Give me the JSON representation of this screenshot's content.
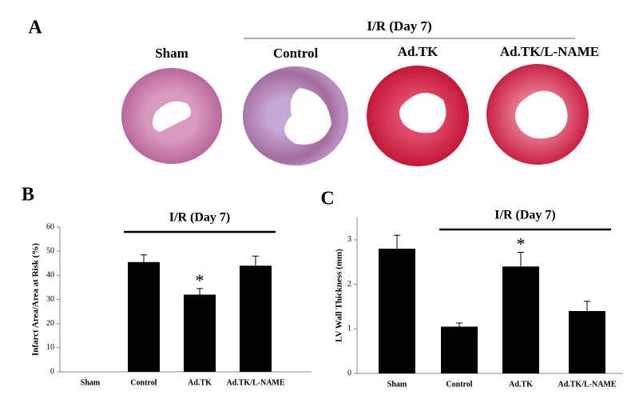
{
  "panel_a": {
    "panel_label": "A",
    "group_label": "I/R (Day 7)",
    "labels": [
      "Sham",
      "Control",
      "Ad.TK",
      "Ad.TK/L-NAME"
    ]
  },
  "chart_data": [
    {
      "type": "bar",
      "panel_label": "B",
      "group_label": "I/R (Day 7)",
      "ylabel": "Infarct Area/Area at Risk (%)",
      "categories": [
        "Sham",
        "Control",
        "Ad.TK",
        "Ad.TK/L-NAME"
      ],
      "values": [
        0,
        45.5,
        32,
        44
      ],
      "errors": [
        null,
        3,
        2.5,
        4
      ],
      "color": "#000000",
      "ylim": [
        0,
        60
      ],
      "yticks": [
        0,
        10,
        20,
        30,
        40,
        50,
        60
      ],
      "annotations": [
        {
          "text": "*",
          "category": "Ad.TK"
        }
      ]
    },
    {
      "type": "bar",
      "panel_label": "C",
      "group_label": "I/R (Day 7)",
      "ylabel": "LV Wall Thickness (mm)",
      "categories": [
        "Sham",
        "Control",
        "Ad.TK",
        "Ad.TK/L-NAME"
      ],
      "values": [
        2.8,
        1.05,
        2.4,
        1.4
      ],
      "errors": [
        0.3,
        0.08,
        0.32,
        0.22
      ],
      "color": "#000000",
      "ylim": [
        0,
        3.5
      ],
      "yticks": [
        0,
        1,
        2,
        3
      ],
      "annotations": [
        {
          "text": "*",
          "category": "Ad.TK"
        }
      ]
    }
  ]
}
